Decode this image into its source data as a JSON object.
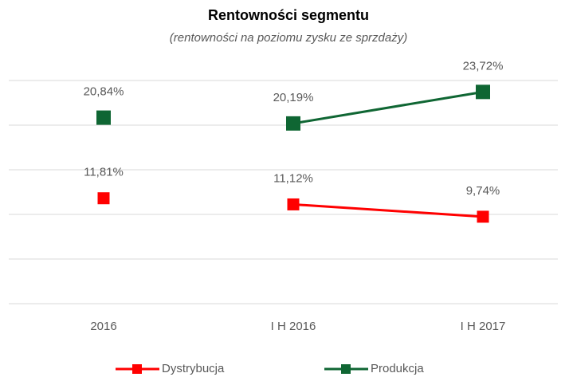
{
  "chart_data": {
    "type": "line",
    "title": "Rentowności segmentu",
    "subtitle": "(rentowności na poziomu zysku ze sprzdaży)",
    "categories": [
      "2016",
      "I H 2016",
      "I H 2017"
    ],
    "series": [
      {
        "name": "Dystrybucja",
        "color": "#ff0000",
        "values": [
          11.81,
          11.12,
          9.74
        ],
        "value_labels": [
          "11,81%",
          "11,12%",
          "9,74%"
        ]
      },
      {
        "name": "Produkcja",
        "color": "#0f6633",
        "values": [
          20.84,
          20.19,
          23.72
        ],
        "value_labels": [
          "20,84%",
          "20,19%",
          "23,72%"
        ]
      }
    ],
    "line_from_index": 1,
    "ylim": [
      0,
      25
    ],
    "yticks": [
      0,
      5,
      10,
      15,
      20,
      25
    ],
    "ytick_labels": false,
    "grid": true,
    "legend": "bottom"
  }
}
